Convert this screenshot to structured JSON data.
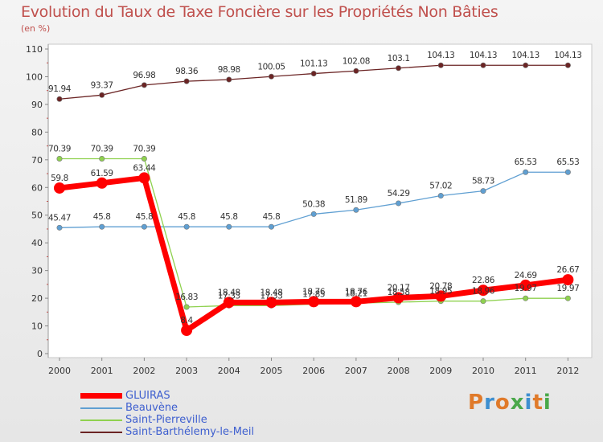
{
  "title": "Evolution du Taux de Taxe Foncière sur les Propriétés Non Bâties",
  "subtitle": "(en %)",
  "logo": [
    "P",
    "r",
    "o",
    "x",
    "i",
    "t",
    "i"
  ],
  "logo_colors": [
    "#e07a2a",
    "#3e8fd0",
    "#e07a2a",
    "#4aa84a",
    "#3e8fd0",
    "#e07a2a",
    "#4aa84a"
  ],
  "chart_data": {
    "type": "line",
    "title": "Evolution du Taux de Taxe Foncière sur les Propriétés Non Bâties",
    "ylabel": "(en %)",
    "xlabel": "",
    "ylim": [
      0,
      110
    ],
    "yticks": [
      "0",
      "10",
      "20",
      "30",
      "40",
      "50",
      "60",
      "70",
      "80",
      "90",
      "100",
      "110"
    ],
    "x": [
      "2000",
      "2001",
      "2002",
      "2003",
      "2004",
      "2005",
      "2006",
      "2007",
      "2008",
      "2009",
      "2010",
      "2011",
      "2012"
    ],
    "series": [
      {
        "name": "Saint-Barthélemy-le-Meil",
        "color": "#6b2424",
        "values": [
          91.94,
          93.37,
          96.98,
          98.36,
          98.98,
          100.05,
          101.13,
          102.08,
          103.1,
          104.13,
          104.13,
          104.13,
          104.13
        ],
        "labels": [
          "91.94",
          "93.37",
          "96.98",
          "98.36",
          "98.98",
          "100.05",
          "101.13",
          "102.08",
          "103.1",
          "104.13",
          "104.13",
          "104.13",
          "104.13"
        ]
      },
      {
        "name": "Beauvène",
        "color": "#5f9fd2",
        "values": [
          45.47,
          45.8,
          45.8,
          45.8,
          45.8,
          45.8,
          50.38,
          51.89,
          54.29,
          57.02,
          58.73,
          65.53,
          65.53
        ],
        "labels": [
          "45.47",
          "45.8",
          "45.8",
          "45.8",
          "45.8",
          "45.8",
          "50.38",
          "51.89",
          "54.29",
          "57.02",
          "58.73",
          "65.53",
          "65.53"
        ]
      },
      {
        "name": "Saint-Pierreville",
        "color": "#8fd14f",
        "values": [
          70.39,
          70.39,
          70.39,
          16.83,
          17.33,
          17.33,
          17.85,
          18.21,
          18.58,
          18.95,
          18.96,
          19.97,
          19.97
        ],
        "labels": [
          "70.39",
          "70.39",
          "70.39",
          "16.83",
          "17.33",
          "17.33",
          "17.85",
          "18.21",
          "18.58",
          "18.95",
          "18.96",
          "19.97",
          "19.97"
        ]
      },
      {
        "name": "GLUIRAS",
        "color": "#ff0000",
        "values": [
          59.8,
          61.59,
          63.44,
          8.4,
          18.48,
          18.48,
          18.76,
          18.76,
          20.17,
          20.78,
          22.86,
          24.69,
          26.67
        ],
        "labels": [
          "59.8",
          "61.59",
          "63.44",
          "8.4",
          "18.48",
          "18.48",
          "18.76",
          "18.76",
          "20.17",
          "20.78",
          "22.86",
          "24.69",
          "26.67"
        ]
      }
    ],
    "legend": [
      "GLUIRAS",
      "Beauvène",
      "Saint-Pierreville",
      "Saint-Barthélemy-le-Meil"
    ],
    "legend_colors": [
      "#ff0000",
      "#5f9fd2",
      "#8fd14f",
      "#6b2424"
    ],
    "legend_position": "bottom-left",
    "grid": false
  }
}
